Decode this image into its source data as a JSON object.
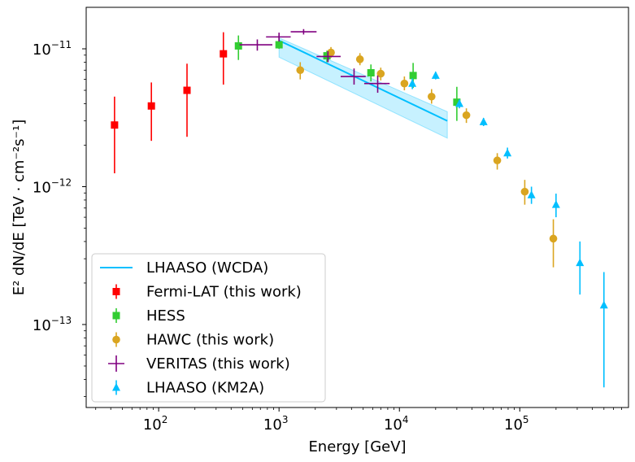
{
  "chart_data": {
    "type": "scatter",
    "xscale": "log",
    "yscale": "log",
    "xlabel": "Energy [GeV]",
    "ylabel": "E² dN/dE [TeV · cm⁻²s⁻¹]",
    "xlim": [
      25,
      800000
    ],
    "ylim": [
      2.5e-14,
      2e-11
    ],
    "x_ticks": [
      {
        "value": 100,
        "base": "10",
        "exp": "2"
      },
      {
        "value": 1000,
        "base": "10",
        "exp": "3"
      },
      {
        "value": 10000,
        "base": "10",
        "exp": "4"
      },
      {
        "value": 100000,
        "base": "10",
        "exp": "5"
      }
    ],
    "y_ticks": [
      {
        "value": 1e-11,
        "base": "10",
        "exp": "−11"
      },
      {
        "value": 1e-12,
        "base": "10",
        "exp": "−12"
      },
      {
        "value": 1e-13,
        "base": "10",
        "exp": "−13"
      }
    ],
    "legend_position": "lower-left",
    "band": {
      "name": "LHAASO (WCDA)",
      "color": "#00bfff",
      "line": [
        [
          1000,
          1.15e-11
        ],
        [
          25000,
          3e-12
        ]
      ],
      "lower": [
        [
          1000,
          8.7e-12
        ],
        [
          25000,
          2.25e-12
        ]
      ],
      "upper": [
        [
          1000,
          1.2e-11
        ],
        [
          25000,
          3.5e-12
        ]
      ]
    },
    "series": [
      {
        "name": "Fermi-LAT (this work)",
        "color": "#ff0000",
        "marker": "square",
        "points": [
          {
            "x": 43,
            "y": 2.8e-12,
            "ylo": 1.25e-12,
            "yhi": 4.5e-12
          },
          {
            "x": 87,
            "y": 3.85e-12,
            "ylo": 2.15e-12,
            "yhi": 5.7e-12
          },
          {
            "x": 172,
            "y": 5e-12,
            "ylo": 2.3e-12,
            "yhi": 7.8e-12
          },
          {
            "x": 345,
            "y": 9.2e-12,
            "ylo": 5.5e-12,
            "yhi": 1.32e-11
          }
        ]
      },
      {
        "name": "HESS",
        "color": "#32cd32",
        "marker": "square",
        "points": [
          {
            "x": 460,
            "y": 1.05e-11,
            "ylo": 8.3e-12,
            "yhi": 1.25e-11
          },
          {
            "x": 1000,
            "y": 1.07e-11,
            "ylo": 1e-11,
            "yhi": 1.25e-11
          },
          {
            "x": 2500,
            "y": 8.9e-12,
            "ylo": 8e-12,
            "yhi": 9.7e-12
          },
          {
            "x": 5800,
            "y": 6.7e-12,
            "ylo": 5.8e-12,
            "yhi": 7.7e-12
          },
          {
            "x": 13000,
            "y": 6.4e-12,
            "ylo": 5.2e-12,
            "yhi": 7.9e-12
          },
          {
            "x": 30000,
            "y": 4.1e-12,
            "ylo": 3e-12,
            "yhi": 5.3e-12
          }
        ]
      },
      {
        "name": "HAWC (this work)",
        "color": "#daa520",
        "marker": "circle",
        "points": [
          {
            "x": 1500,
            "y": 7e-12,
            "ylo": 6e-12,
            "yhi": 8e-12
          },
          {
            "x": 2700,
            "y": 9.4e-12,
            "ylo": 8.6e-12,
            "yhi": 1.03e-11
          },
          {
            "x": 4700,
            "y": 8.4e-12,
            "ylo": 7.6e-12,
            "yhi": 9.3e-12
          },
          {
            "x": 7000,
            "y": 6.6e-12,
            "ylo": 5.9e-12,
            "yhi": 7.3e-12
          },
          {
            "x": 11000,
            "y": 5.6e-12,
            "ylo": 5e-12,
            "yhi": 6.3e-12
          },
          {
            "x": 18500,
            "y": 4.5e-12,
            "ylo": 4e-12,
            "yhi": 5.1e-12
          },
          {
            "x": 36000,
            "y": 3.3e-12,
            "ylo": 2.9e-12,
            "yhi": 3.7e-12
          },
          {
            "x": 65000,
            "y": 1.55e-12,
            "ylo": 1.33e-12,
            "yhi": 1.75e-12
          },
          {
            "x": 110000,
            "y": 9.2e-13,
            "ylo": 7.4e-13,
            "yhi": 1.12e-12
          },
          {
            "x": 190000,
            "y": 4.2e-13,
            "ylo": 2.6e-13,
            "yhi": 5.8e-13
          }
        ]
      },
      {
        "name": "VERITAS (this work)",
        "color": "#800080",
        "marker": "plus",
        "points": [
          {
            "x": 660,
            "y": 1.07e-11,
            "xlo": 470,
            "xhi": 880,
            "ylo": 9.7e-12,
            "yhi": 1.17e-11
          },
          {
            "x": 1000,
            "y": 1.22e-11,
            "xlo": 780,
            "xhi": 1250,
            "ylo": 1.13e-11,
            "yhi": 1.31e-11
          },
          {
            "x": 1600,
            "y": 1.33e-11,
            "xlo": 1250,
            "xhi": 2050,
            "ylo": 1.27e-11,
            "yhi": 1.39e-11
          },
          {
            "x": 2550,
            "y": 8.8e-12,
            "xlo": 2050,
            "xhi": 3250,
            "ylo": 8e-12,
            "yhi": 9.6e-12
          },
          {
            "x": 4200,
            "y": 6.3e-12,
            "xlo": 3250,
            "xhi": 5250,
            "ylo": 5.5e-12,
            "yhi": 7.2e-12
          },
          {
            "x": 6600,
            "y": 5.6e-12,
            "xlo": 5100,
            "xhi": 8300,
            "ylo": 4.8e-12,
            "yhi": 6.4e-12
          }
        ]
      },
      {
        "name": "LHAASO (KM2A)",
        "color": "#00bfff",
        "marker": "triangle",
        "points": [
          {
            "x": 12800,
            "y": 5.6e-12,
            "ylo": 5.1e-12,
            "yhi": 6.1e-12
          },
          {
            "x": 20000,
            "y": 6.4e-12,
            "ylo": 6e-12,
            "yhi": 6.8e-12
          },
          {
            "x": 31500,
            "y": 4e-12,
            "ylo": 3.7e-12,
            "yhi": 4.3e-12
          },
          {
            "x": 50000,
            "y": 2.95e-12,
            "ylo": 2.75e-12,
            "yhi": 3.15e-12
          },
          {
            "x": 79000,
            "y": 1.75e-12,
            "ylo": 1.6e-12,
            "yhi": 1.92e-12
          },
          {
            "x": 125000,
            "y": 8.7e-13,
            "ylo": 7.5e-13,
            "yhi": 1e-12
          },
          {
            "x": 200000,
            "y": 7.4e-13,
            "ylo": 6e-13,
            "yhi": 8.9e-13
          },
          {
            "x": 316000,
            "y": 2.8e-13,
            "ylo": 1.65e-13,
            "yhi": 4e-13
          },
          {
            "x": 500000,
            "y": 1.38e-13,
            "ylo": 3.5e-14,
            "yhi": 2.4e-13
          }
        ]
      }
    ]
  }
}
